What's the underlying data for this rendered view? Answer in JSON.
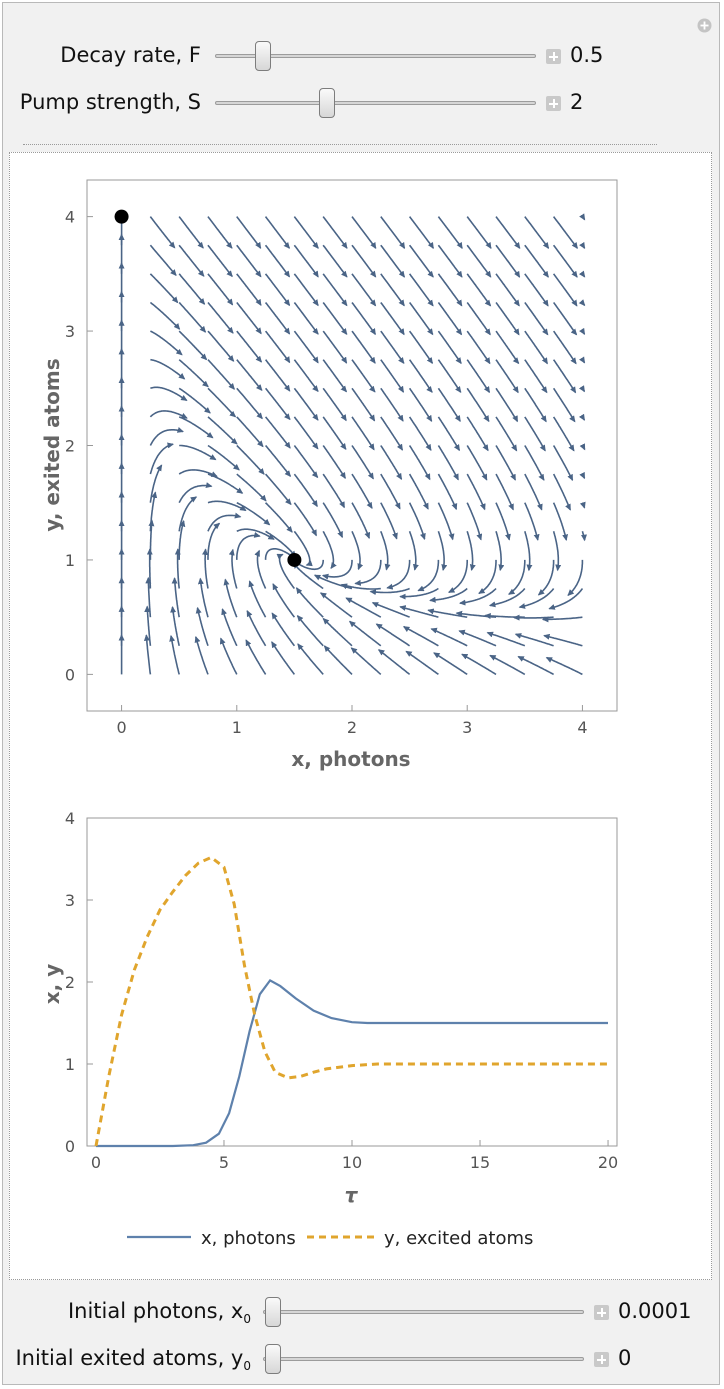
{
  "controls_top": [
    {
      "label": "Decay rate, F",
      "value": "0.5",
      "level": 0.13
    },
    {
      "label": "Pump strength, S",
      "value": "2",
      "level": 0.34
    }
  ],
  "controls_bottom": [
    {
      "label_main": "Initial photons, x",
      "label_sub": "0",
      "value": "0.0001",
      "level": 0.0
    },
    {
      "label_main": "Initial exited atoms, y",
      "label_sub": "0",
      "value": "0",
      "level": 0.0
    }
  ],
  "colors": {
    "stream": "#4a6486",
    "x_series": "#5e81ac",
    "y_series": "#e0a52d",
    "panel_bg": "#f1f1f1"
  },
  "chart_data": [
    {
      "type": "streamplot",
      "xlabel": "x, photons",
      "ylabel": "y, exited atoms",
      "xlim": [
        -0.3,
        4.3
      ],
      "ylim": [
        -0.32,
        4.32
      ],
      "x_ticks": [
        0,
        1,
        2,
        3,
        4
      ],
      "y_ticks": [
        0,
        1,
        2,
        3,
        4
      ],
      "fixed_points": [
        {
          "x": 0,
          "y": 4
        },
        {
          "x": 1.5,
          "y": 1
        }
      ],
      "parameters": {
        "F": 0.5,
        "S": 2
      }
    },
    {
      "type": "line",
      "xlabel": "τ",
      "ylabel": "x, y",
      "xlim": [
        -0.35,
        20.35
      ],
      "ylim": [
        0,
        4
      ],
      "x_ticks": [
        0,
        5,
        10,
        15,
        20
      ],
      "y_ticks": [
        0,
        1,
        2,
        3,
        4
      ],
      "legend_position": "bottom",
      "series": [
        {
          "name": "x, photons",
          "style": "solid",
          "x": [
            0,
            3,
            3.8,
            4.3,
            4.8,
            5.2,
            5.6,
            6.0,
            6.4,
            6.8,
            7.2,
            7.8,
            8.5,
            9.2,
            10.0,
            10.6,
            12,
            14,
            16,
            18,
            20
          ],
          "y": [
            0,
            0,
            0.01,
            0.04,
            0.15,
            0.4,
            0.85,
            1.4,
            1.85,
            2.02,
            1.95,
            1.8,
            1.65,
            1.56,
            1.51,
            1.5,
            1.5,
            1.5,
            1.5,
            1.5,
            1.5
          ]
        },
        {
          "name": "y, excited atoms",
          "style": "dashed",
          "x": [
            0,
            0.5,
            1,
            1.5,
            2,
            2.5,
            3,
            3.5,
            4,
            4.5,
            5.0,
            5.4,
            5.8,
            6.2,
            6.6,
            7.0,
            7.5,
            8.0,
            8.5,
            9.0,
            10.0,
            11,
            12,
            14,
            16,
            18,
            20
          ],
          "y": [
            0,
            0.85,
            1.6,
            2.15,
            2.55,
            2.88,
            3.1,
            3.3,
            3.45,
            3.52,
            3.4,
            2.95,
            2.2,
            1.6,
            1.15,
            0.9,
            0.83,
            0.85,
            0.9,
            0.94,
            0.98,
            1.0,
            1.0,
            1.0,
            1.0,
            1.0,
            1.0
          ]
        }
      ]
    }
  ]
}
